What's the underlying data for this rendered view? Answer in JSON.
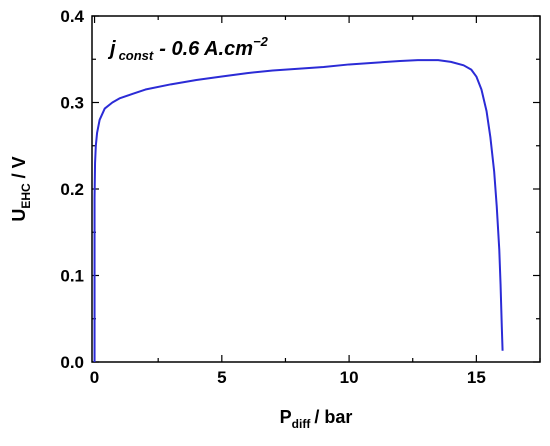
{
  "chart_data": {
    "type": "line",
    "xlabel": {
      "main": "P",
      "sub": "diff",
      "rest": "/ bar"
    },
    "ylabel": {
      "main": "U",
      "sub": "EHC",
      "rest": "/ V"
    },
    "annotation": {
      "main": "j",
      "sub": "const",
      "rest": "- 0.6 A.cm",
      "sup": "−2"
    },
    "xlim": [
      -0.1,
      17.5
    ],
    "ylim": [
      0.0,
      0.4
    ],
    "xticks": [
      0,
      5,
      10,
      15
    ],
    "yticks": [
      0.0,
      0.1,
      0.2,
      0.3,
      0.4
    ],
    "xtick_labels": [
      "0",
      "5",
      "10",
      "15"
    ],
    "ytick_labels": [
      "0.0",
      "0.1",
      "0.2",
      "0.3",
      "0.4"
    ],
    "grid": false,
    "series": [
      {
        "color": "#2b2bd6",
        "x": [
          0.0,
          0.0,
          0.02,
          0.05,
          0.1,
          0.2,
          0.4,
          0.7,
          1.0,
          1.5,
          2.0,
          3.0,
          4.0,
          5.0,
          6.0,
          7.0,
          8.0,
          9.0,
          10.0,
          11.0,
          12.0,
          12.7,
          13.5,
          14.0,
          14.5,
          14.8,
          15.0,
          15.2,
          15.4,
          15.55,
          15.7,
          15.8,
          15.9,
          15.95,
          16.0,
          16.03
        ],
        "y": [
          0.0,
          0.19,
          0.23,
          0.25,
          0.265,
          0.28,
          0.293,
          0.3,
          0.305,
          0.31,
          0.315,
          0.321,
          0.326,
          0.33,
          0.334,
          0.337,
          0.339,
          0.341,
          0.344,
          0.346,
          0.348,
          0.349,
          0.349,
          0.347,
          0.343,
          0.338,
          0.33,
          0.315,
          0.29,
          0.26,
          0.22,
          0.18,
          0.13,
          0.09,
          0.04,
          0.013
        ]
      }
    ]
  }
}
